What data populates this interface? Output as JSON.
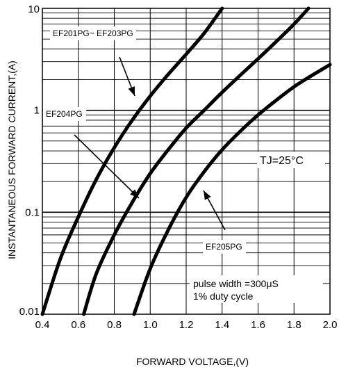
{
  "chart_data": {
    "type": "line",
    "xlabel": "FORWARD VOLTAGE,(V)",
    "ylabel": "INSTANTANEOUS FORWARD CURRENT,(A)",
    "x_scale": "linear",
    "y_scale": "log",
    "xlim": [
      0.4,
      2.0
    ],
    "ylim": [
      0.01,
      10
    ],
    "x_ticks": [
      "0.4",
      "0.6",
      "0.8",
      "1.0",
      "1.2",
      "1.4",
      "1.6",
      "1.8",
      "2.0"
    ],
    "y_ticks": [
      "0.01",
      "0.1",
      "1",
      "10"
    ],
    "grid": true,
    "series": [
      {
        "name": "EF201PG~ EF203PG",
        "x": [
          0.4,
          0.5,
          0.6,
          0.7,
          0.8,
          0.9,
          1.0,
          1.1,
          1.2,
          1.3,
          1.4
        ],
        "y": [
          0.01,
          0.035,
          0.09,
          0.21,
          0.43,
          0.8,
          1.38,
          2.25,
          3.55,
          5.7,
          10
        ]
      },
      {
        "name": "EF204PG",
        "x": [
          0.63,
          0.7,
          0.8,
          0.9,
          1.0,
          1.1,
          1.2,
          1.3,
          1.4,
          1.5,
          1.6,
          1.7,
          1.8,
          1.88
        ],
        "y": [
          0.01,
          0.025,
          0.06,
          0.125,
          0.24,
          0.41,
          0.67,
          1.0,
          1.5,
          2.2,
          3.2,
          4.7,
          7.0,
          10
        ]
      },
      {
        "name": "EF205PG",
        "x": [
          0.91,
          1.0,
          1.1,
          1.2,
          1.3,
          1.4,
          1.5,
          1.6,
          1.7,
          1.8,
          1.9,
          2.0
        ],
        "y": [
          0.01,
          0.028,
          0.067,
          0.14,
          0.25,
          0.41,
          0.62,
          0.9,
          1.25,
          1.7,
          2.2,
          2.8
        ]
      }
    ],
    "annotations": {
      "label1": "EF201PG~ EF203PG",
      "label2": "EF204PG",
      "label3": "EF205PG",
      "temperature": "TJ=25°C",
      "pulse_line1": "pulse width =300μS",
      "pulse_line2": "1% duty cycle"
    }
  }
}
